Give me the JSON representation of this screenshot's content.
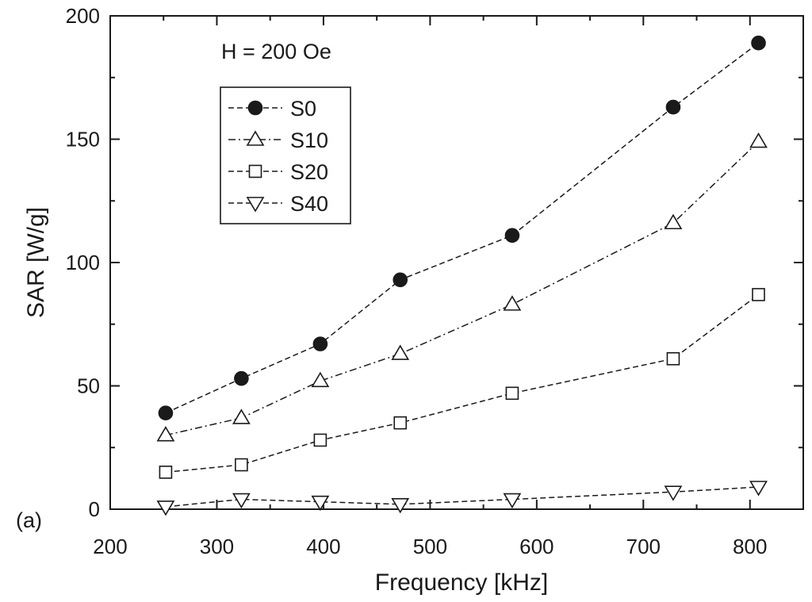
{
  "chart_data": {
    "type": "line",
    "xlabel": "Frequency [kHz]",
    "ylabel": "SAR [W/g]",
    "annotation": "H = 200 Oe",
    "panel_label": "(a)",
    "xlim": [
      200,
      850
    ],
    "ylim": [
      0,
      200
    ],
    "xticks": [
      200,
      300,
      400,
      500,
      600,
      700,
      800
    ],
    "yticks": [
      0,
      50,
      100,
      150,
      200
    ],
    "grid": false,
    "legend_position": "upper-left",
    "series": [
      {
        "name": "S0",
        "marker": "filled-circle",
        "line": "dashed",
        "x": [
          252,
          323,
          397,
          472,
          577,
          728,
          808
        ],
        "y": [
          39,
          53,
          67,
          93,
          111,
          163,
          189
        ]
      },
      {
        "name": "S10",
        "marker": "open-triangle-up",
        "line": "dash-dot",
        "x": [
          252,
          323,
          397,
          472,
          577,
          728,
          808
        ],
        "y": [
          30,
          37,
          52,
          63,
          83,
          116,
          149
        ]
      },
      {
        "name": "S20",
        "marker": "open-square",
        "line": "dashed",
        "x": [
          252,
          323,
          397,
          472,
          577,
          728,
          808
        ],
        "y": [
          15,
          18,
          28,
          35,
          47,
          61,
          87
        ]
      },
      {
        "name": "S40",
        "marker": "open-triangle-down",
        "line": "dashed",
        "x": [
          252,
          323,
          397,
          472,
          577,
          728,
          808
        ],
        "y": [
          1,
          4,
          3,
          2,
          4,
          7,
          9
        ]
      }
    ]
  }
}
